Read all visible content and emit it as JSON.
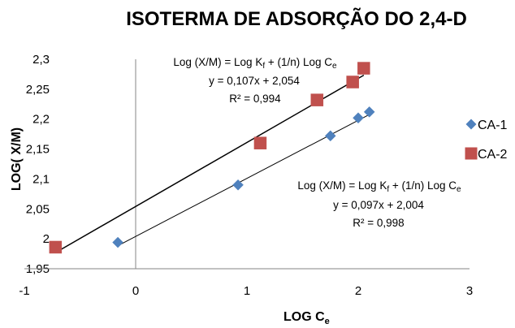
{
  "chart_data": {
    "type": "scatter",
    "title": "ISOTERMA DE ADSORÇÃO DO 2,4-D",
    "xlabel_main": "LOG C",
    "xlabel_sub": "e",
    "ylabel": "LOG( X/M)",
    "xlim": [
      -1,
      3
    ],
    "ylim": [
      1.95,
      2.3
    ],
    "x_ticks": [
      -1,
      0,
      1,
      2,
      3
    ],
    "x_tick_labels": [
      "-1",
      "0",
      "1",
      "2",
      "3"
    ],
    "y_ticks": [
      1.95,
      2.0,
      2.05,
      2.1,
      2.15,
      2.2,
      2.25,
      2.3
    ],
    "y_tick_labels": [
      "1,95",
      "2",
      "2,05",
      "2,1",
      "2,15",
      "2,2",
      "2,25",
      "2,3"
    ],
    "grid": false,
    "legend_position": "right",
    "series": [
      {
        "name": "CA-1",
        "marker": "diamond",
        "color": "#4f81bd",
        "x": [
          -0.16,
          0.92,
          1.75,
          2.0,
          2.1
        ],
        "y": [
          1.994,
          2.09,
          2.172,
          2.202,
          2.212
        ],
        "trendline": {
          "slope": 0.097,
          "intercept": 2.004,
          "x_range": [
            -0.16,
            2.1
          ],
          "color": "#000000"
        }
      },
      {
        "name": "CA-2",
        "marker": "square",
        "color": "#c0504d",
        "x": [
          -0.72,
          1.12,
          1.63,
          1.95,
          2.05
        ],
        "y": [
          1.986,
          2.16,
          2.232,
          2.262,
          2.285
        ],
        "trendline": {
          "slope": 0.107,
          "intercept": 2.054,
          "x_range": [
            -0.72,
            2.05
          ],
          "color": "#000000"
        }
      }
    ],
    "annotations": [
      {
        "series": "CA-2",
        "equation_prefix": "Log (X/M) = Log K",
        "equation_sub1": "f",
        "equation_mid": " + (1/n) Log C",
        "equation_sub2": "e",
        "fit": "y = 0,107x + 2,054",
        "r2": "R² = 0,994"
      },
      {
        "series": "CA-1",
        "equation_prefix": "Log (X/M) = Log K",
        "equation_sub1": "f",
        "equation_mid": " + (1/n) Log C",
        "equation_sub2": "e",
        "fit": "y = 0,097x + 2,004",
        "r2": "R² = 0,998"
      }
    ]
  }
}
